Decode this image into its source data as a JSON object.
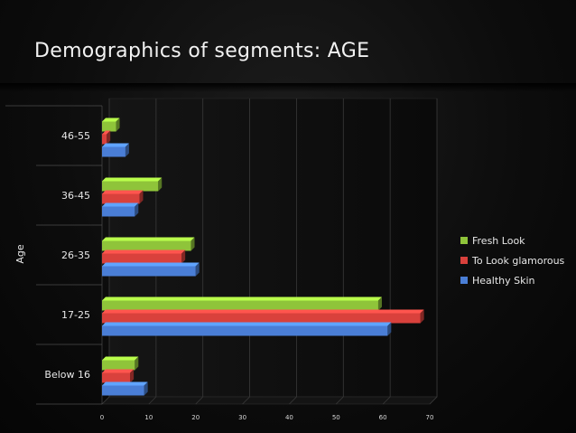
{
  "title": "Demographics of segments: AGE",
  "chart_data": {
    "type": "bar",
    "orientation": "horizontal",
    "style": "3d",
    "title": "",
    "ylabel": "Age",
    "xlabel": "",
    "categories": [
      "Below 16",
      "17-25",
      "26-35",
      "36-45",
      "46-55"
    ],
    "series": [
      {
        "name": "Healthy Skin",
        "color": "#4a7ed6",
        "values": [
          9,
          61,
          20,
          7,
          5
        ]
      },
      {
        "name": "To Look glamorous",
        "color": "#d9413c",
        "values": [
          6,
          68,
          17,
          8,
          1
        ]
      },
      {
        "name": "Fresh Look",
        "color": "#8fc43a",
        "values": [
          7,
          59,
          19,
          12,
          3
        ]
      }
    ],
    "xlim": [
      0,
      70
    ],
    "xticks": [
      "0",
      "10",
      "20",
      "30",
      "40",
      "50",
      "60",
      "70"
    ],
    "grid": true,
    "legend_position": "right"
  }
}
